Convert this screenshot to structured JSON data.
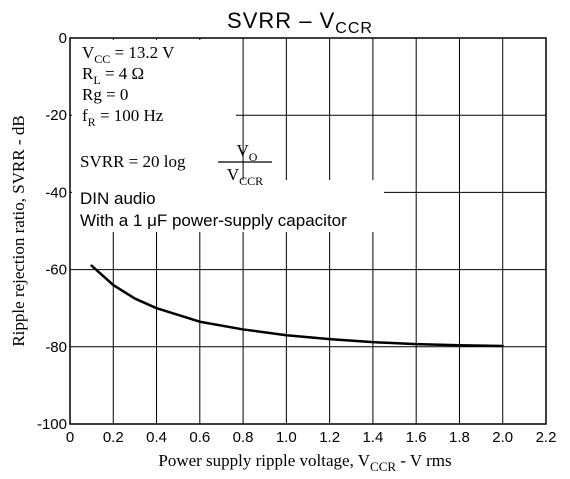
{
  "chart_data": {
    "type": "line",
    "title": [
      {
        "text": "SVRR  –  V"
      },
      {
        "sub": "CCR"
      }
    ],
    "xlabel": [
      {
        "text": "Power supply ripple voltage, V"
      },
      {
        "sub": "CCR"
      },
      {
        "text": " - V rms"
      }
    ],
    "ylabel": "Ripple rejection ratio, SVRR - dB",
    "annotations": [
      [
        {
          "text": "V"
        },
        {
          "sub": "CC"
        },
        {
          "text": " = 13.2 V"
        }
      ],
      [
        {
          "text": "R"
        },
        {
          "sub": "L"
        },
        {
          "text": " = 4 Ω"
        }
      ],
      [
        {
          "text": "Rg = 0"
        }
      ],
      [
        {
          "text": "f"
        },
        {
          "sub": "R"
        },
        {
          "text": " = 100 Hz"
        }
      ]
    ],
    "formula": {
      "left": "SVRR = 20 log",
      "numerator": [
        {
          "text": "V"
        },
        {
          "sub": "O"
        }
      ],
      "denominator": [
        {
          "text": "V"
        },
        {
          "sub": "CCR"
        }
      ]
    },
    "notes": [
      "DIN audio",
      "With a 1 μF power-supply capacitor"
    ],
    "x": [
      0.1,
      0.2,
      0.3,
      0.4,
      0.6,
      0.8,
      1.0,
      1.2,
      1.4,
      1.6,
      1.8,
      2.0
    ],
    "series": [
      {
        "color": "#000000",
        "values": [
          -59,
          -64,
          -67.5,
          -70,
          -73.5,
          -75.5,
          -77,
          -78,
          -78.8,
          -79.3,
          -79.6,
          -79.8
        ]
      }
    ],
    "xlim": [
      0,
      2.2
    ],
    "xticks": [
      0,
      0.2,
      0.4,
      0.6,
      0.8,
      {
        "value": 1,
        "label": "1.0"
      },
      1.2,
      1.4,
      1.6,
      1.8,
      {
        "value": 2,
        "label": "2.0"
      },
      2.2
    ],
    "ylim": [
      -100,
      0
    ],
    "yticks": [
      -100,
      -80,
      -60,
      -40,
      -20,
      0
    ],
    "grid": true
  }
}
